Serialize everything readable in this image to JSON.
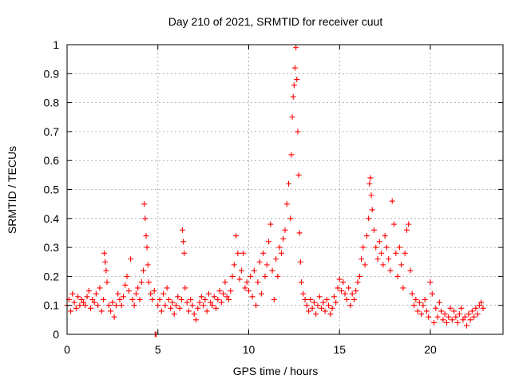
{
  "chart_data": {
    "type": "scatter",
    "title": "Day 210 of 2021, SRMTID for receiver cuut",
    "xlabel": "GPS time / hours",
    "ylabel": "SRMTID / TECUs",
    "xlim": [
      0,
      24
    ],
    "ylim": [
      0,
      1
    ],
    "xticks": [
      0,
      5,
      10,
      15,
      20
    ],
    "yticks": [
      0,
      0.1,
      0.2,
      0.3,
      0.4,
      0.5,
      0.6,
      0.7,
      0.8,
      0.9,
      1
    ],
    "grid": true,
    "marker": "+",
    "marker_color": "#ff0000",
    "series": [
      {
        "name": "SRMTID",
        "points": [
          [
            0.0,
            0.1
          ],
          [
            0.1,
            0.12
          ],
          [
            0.2,
            0.08
          ],
          [
            0.3,
            0.14
          ],
          [
            0.4,
            0.11
          ],
          [
            0.5,
            0.09
          ],
          [
            0.6,
            0.13
          ],
          [
            0.7,
            0.1
          ],
          [
            0.8,
            0.12
          ],
          [
            0.9,
            0.11
          ],
          [
            1.0,
            0.1
          ],
          [
            1.1,
            0.13
          ],
          [
            1.2,
            0.15
          ],
          [
            1.3,
            0.09
          ],
          [
            1.4,
            0.12
          ],
          [
            1.5,
            0.11
          ],
          [
            1.6,
            0.14
          ],
          [
            1.7,
            0.1
          ],
          [
            1.8,
            0.16
          ],
          [
            1.9,
            0.08
          ],
          [
            2.0,
            0.12
          ],
          [
            2.05,
            0.28
          ],
          [
            2.1,
            0.25
          ],
          [
            2.15,
            0.22
          ],
          [
            2.2,
            0.18
          ],
          [
            2.3,
            0.1
          ],
          [
            2.4,
            0.08
          ],
          [
            2.5,
            0.11
          ],
          [
            2.6,
            0.06
          ],
          [
            2.7,
            0.1
          ],
          [
            2.8,
            0.14
          ],
          [
            2.9,
            0.12
          ],
          [
            3.0,
            0.1
          ],
          [
            3.1,
            0.13
          ],
          [
            3.2,
            0.17
          ],
          [
            3.3,
            0.2
          ],
          [
            3.4,
            0.15
          ],
          [
            3.5,
            0.26
          ],
          [
            3.6,
            0.12
          ],
          [
            3.7,
            0.1
          ],
          [
            3.8,
            0.14
          ],
          [
            3.9,
            0.16
          ],
          [
            4.0,
            0.12
          ],
          [
            4.1,
            0.18
          ],
          [
            4.2,
            0.22
          ],
          [
            4.25,
            0.45
          ],
          [
            4.3,
            0.4
          ],
          [
            4.35,
            0.34
          ],
          [
            4.4,
            0.3
          ],
          [
            4.45,
            0.24
          ],
          [
            4.5,
            0.18
          ],
          [
            4.6,
            0.14
          ],
          [
            4.7,
            0.12
          ],
          [
            4.8,
            0.15
          ],
          [
            4.85,
            0.0
          ],
          [
            4.9,
            0.0
          ],
          [
            5.0,
            0.1
          ],
          [
            5.1,
            0.12
          ],
          [
            5.2,
            0.08
          ],
          [
            5.3,
            0.14
          ],
          [
            5.4,
            0.1
          ],
          [
            5.5,
            0.16
          ],
          [
            5.6,
            0.12
          ],
          [
            5.7,
            0.09
          ],
          [
            5.8,
            0.11
          ],
          [
            5.9,
            0.07
          ],
          [
            6.0,
            0.1
          ],
          [
            6.1,
            0.13
          ],
          [
            6.2,
            0.09
          ],
          [
            6.3,
            0.12
          ],
          [
            6.35,
            0.36
          ],
          [
            6.4,
            0.32
          ],
          [
            6.45,
            0.28
          ],
          [
            6.5,
            0.16
          ],
          [
            6.6,
            0.11
          ],
          [
            6.7,
            0.08
          ],
          [
            6.8,
            0.12
          ],
          [
            6.9,
            0.1
          ],
          [
            7.0,
            0.07
          ],
          [
            7.1,
            0.05
          ],
          [
            7.2,
            0.09
          ],
          [
            7.3,
            0.11
          ],
          [
            7.4,
            0.13
          ],
          [
            7.5,
            0.1
          ],
          [
            7.6,
            0.12
          ],
          [
            7.7,
            0.08
          ],
          [
            7.8,
            0.14
          ],
          [
            7.9,
            0.11
          ],
          [
            8.0,
            0.1
          ],
          [
            8.1,
            0.13
          ],
          [
            8.2,
            0.09
          ],
          [
            8.3,
            0.12
          ],
          [
            8.4,
            0.15
          ],
          [
            8.5,
            0.11
          ],
          [
            8.6,
            0.14
          ],
          [
            8.7,
            0.18
          ],
          [
            8.8,
            0.13
          ],
          [
            8.9,
            0.12
          ],
          [
            9.0,
            0.15
          ],
          [
            9.1,
            0.2
          ],
          [
            9.2,
            0.24
          ],
          [
            9.3,
            0.34
          ],
          [
            9.4,
            0.28
          ],
          [
            9.5,
            0.19
          ],
          [
            9.6,
            0.22
          ],
          [
            9.7,
            0.28
          ],
          [
            9.8,
            0.16
          ],
          [
            9.9,
            0.18
          ],
          [
            10.0,
            0.15
          ],
          [
            10.1,
            0.2
          ],
          [
            10.2,
            0.13
          ],
          [
            10.3,
            0.22
          ],
          [
            10.4,
            0.1
          ],
          [
            10.5,
            0.18
          ],
          [
            10.6,
            0.25
          ],
          [
            10.7,
            0.14
          ],
          [
            10.8,
            0.28
          ],
          [
            10.9,
            0.2
          ],
          [
            11.0,
            0.24
          ],
          [
            11.1,
            0.32
          ],
          [
            11.2,
            0.38
          ],
          [
            11.3,
            0.22
          ],
          [
            11.4,
            0.12
          ],
          [
            11.5,
            0.26
          ],
          [
            11.6,
            0.2
          ],
          [
            11.7,
            0.3
          ],
          [
            11.8,
            0.28
          ],
          [
            11.9,
            0.33
          ],
          [
            12.0,
            0.36
          ],
          [
            12.1,
            0.45
          ],
          [
            12.2,
            0.52
          ],
          [
            12.3,
            0.4
          ],
          [
            12.35,
            0.62
          ],
          [
            12.4,
            0.75
          ],
          [
            12.45,
            0.82
          ],
          [
            12.5,
            0.86
          ],
          [
            12.55,
            0.92
          ],
          [
            12.6,
            0.99
          ],
          [
            12.65,
            0.88
          ],
          [
            12.7,
            0.7
          ],
          [
            12.75,
            0.55
          ],
          [
            12.8,
            0.35
          ],
          [
            12.85,
            0.25
          ],
          [
            12.9,
            0.18
          ],
          [
            13.0,
            0.14
          ],
          [
            13.1,
            0.12
          ],
          [
            13.2,
            0.1
          ],
          [
            13.3,
            0.08
          ],
          [
            13.4,
            0.12
          ],
          [
            13.5,
            0.09
          ],
          [
            13.6,
            0.11
          ],
          [
            13.7,
            0.07
          ],
          [
            13.8,
            0.1
          ],
          [
            13.9,
            0.13
          ],
          [
            14.0,
            0.09
          ],
          [
            14.1,
            0.11
          ],
          [
            14.2,
            0.08
          ],
          [
            14.3,
            0.12
          ],
          [
            14.4,
            0.1
          ],
          [
            14.5,
            0.07
          ],
          [
            14.6,
            0.09
          ],
          [
            14.7,
            0.13
          ],
          [
            14.8,
            0.11
          ],
          [
            14.9,
            0.16
          ],
          [
            15.0,
            0.19
          ],
          [
            15.1,
            0.15
          ],
          [
            15.2,
            0.18
          ],
          [
            15.3,
            0.14
          ],
          [
            15.4,
            0.12
          ],
          [
            15.5,
            0.16
          ],
          [
            15.6,
            0.1
          ],
          [
            15.7,
            0.14
          ],
          [
            15.8,
            0.12
          ],
          [
            15.9,
            0.15
          ],
          [
            16.0,
            0.18
          ],
          [
            16.1,
            0.2
          ],
          [
            16.2,
            0.26
          ],
          [
            16.3,
            0.3
          ],
          [
            16.4,
            0.24
          ],
          [
            16.5,
            0.34
          ],
          [
            16.6,
            0.4
          ],
          [
            16.65,
            0.52
          ],
          [
            16.7,
            0.54
          ],
          [
            16.75,
            0.48
          ],
          [
            16.8,
            0.43
          ],
          [
            16.9,
            0.36
          ],
          [
            17.0,
            0.3
          ],
          [
            17.1,
            0.26
          ],
          [
            17.2,
            0.32
          ],
          [
            17.3,
            0.28
          ],
          [
            17.4,
            0.24
          ],
          [
            17.5,
            0.34
          ],
          [
            17.6,
            0.3
          ],
          [
            17.7,
            0.26
          ],
          [
            17.8,
            0.22
          ],
          [
            17.9,
            0.46
          ],
          [
            18.0,
            0.38
          ],
          [
            18.1,
            0.28
          ],
          [
            18.2,
            0.2
          ],
          [
            18.3,
            0.3
          ],
          [
            18.4,
            0.24
          ],
          [
            18.5,
            0.16
          ],
          [
            18.6,
            0.28
          ],
          [
            18.7,
            0.36
          ],
          [
            18.8,
            0.38
          ],
          [
            18.9,
            0.22
          ],
          [
            19.0,
            0.14
          ],
          [
            19.1,
            0.1
          ],
          [
            19.2,
            0.12
          ],
          [
            19.3,
            0.08
          ],
          [
            19.4,
            0.11
          ],
          [
            19.5,
            0.07
          ],
          [
            19.6,
            0.1
          ],
          [
            19.7,
            0.12
          ],
          [
            19.8,
            0.08
          ],
          [
            19.9,
            0.06
          ],
          [
            20.0,
            0.18
          ],
          [
            20.1,
            0.14
          ],
          [
            20.2,
            0.04
          ],
          [
            20.3,
            0.09
          ],
          [
            20.4,
            0.06
          ],
          [
            20.5,
            0.11
          ],
          [
            20.6,
            0.08
          ],
          [
            20.7,
            0.05
          ],
          [
            20.8,
            0.07
          ],
          [
            20.9,
            0.04
          ],
          [
            21.0,
            0.06
          ],
          [
            21.1,
            0.09
          ],
          [
            21.2,
            0.05
          ],
          [
            21.3,
            0.08
          ],
          [
            21.4,
            0.06
          ],
          [
            21.5,
            0.04
          ],
          [
            21.6,
            0.07
          ],
          [
            21.7,
            0.09
          ],
          [
            21.8,
            0.05
          ],
          [
            21.9,
            0.06
          ],
          [
            22.0,
            0.03
          ],
          [
            22.1,
            0.07
          ],
          [
            22.2,
            0.05
          ],
          [
            22.3,
            0.08
          ],
          [
            22.4,
            0.06
          ],
          [
            22.5,
            0.09
          ],
          [
            22.6,
            0.07
          ],
          [
            22.7,
            0.1
          ],
          [
            22.8,
            0.11
          ],
          [
            22.9,
            0.09
          ]
        ]
      }
    ]
  }
}
